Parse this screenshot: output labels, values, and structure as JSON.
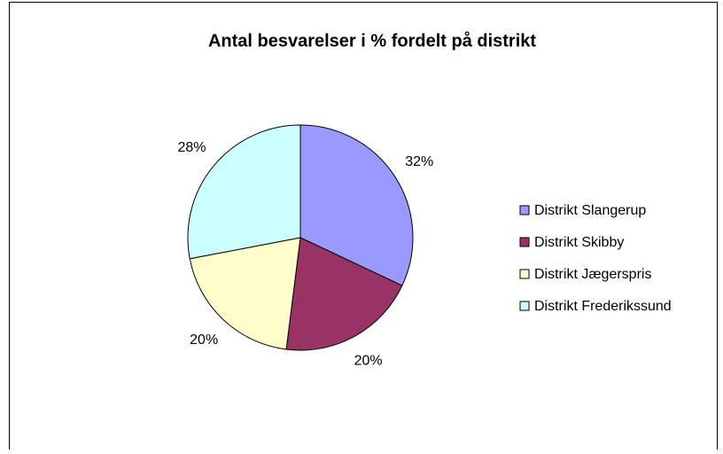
{
  "chart_data": {
    "type": "pie",
    "title": "Antal besvarelser i % fordelt på distrikt",
    "categories": [
      "Distrikt Slangerup",
      "Distrikt Skibby",
      "Distrikt Jægerspris",
      "Distrikt Frederikssund"
    ],
    "values": [
      32,
      20,
      20,
      28
    ],
    "value_labels": [
      "32%",
      "20%",
      "20%",
      "28%"
    ],
    "colors": [
      "#9999ff",
      "#993366",
      "#ffffcc",
      "#ccffff"
    ],
    "legend": "right"
  }
}
